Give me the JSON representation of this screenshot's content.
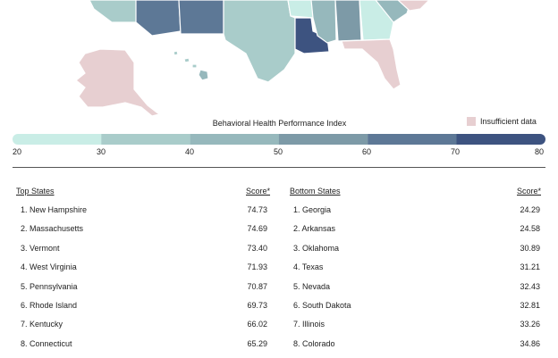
{
  "colors": {
    "c20_30": "#c9ede6",
    "c30_40": "#a9ccca",
    "c40_50": "#96b8bc",
    "c50_60": "#7d9aa7",
    "c60_70": "#5d7896",
    "c70_80": "#3d5380",
    "insufficient": "#e7cfd1",
    "outline": "#ffffff"
  },
  "legend": {
    "title": "Behavioral Health Performance Index",
    "insufficient_label": "Insufficient data",
    "ticks": [
      "20",
      "30",
      "40",
      "50",
      "60",
      "70",
      "80"
    ]
  },
  "top": {
    "header": "Top States",
    "score_header": "Score*",
    "items": [
      {
        "label": "1. New Hampshire",
        "score": "74.73"
      },
      {
        "label": "2. Massachusetts",
        "score": "74.69"
      },
      {
        "label": "3. Vermont",
        "score": "73.40"
      },
      {
        "label": "4. West Virginia",
        "score": "71.93"
      },
      {
        "label": "5. Pennsylvania",
        "score": "70.87"
      },
      {
        "label": "6. Rhode Island",
        "score": "69.73"
      },
      {
        "label": "7. Kentucky",
        "score": "66.02"
      },
      {
        "label": "8. Connecticut",
        "score": "65.29"
      }
    ]
  },
  "bottom": {
    "header": "Bottom States",
    "score_header": "Score*",
    "items": [
      {
        "label": "1. Georgia",
        "score": "24.29"
      },
      {
        "label": "2. Arkansas",
        "score": "24.58"
      },
      {
        "label": "3. Oklahoma",
        "score": "30.89"
      },
      {
        "label": "4. Texas",
        "score": "31.21"
      },
      {
        "label": "5. Nevada",
        "score": "32.43"
      },
      {
        "label": "6. South Dakota",
        "score": "32.81"
      },
      {
        "label": "7. Illinois",
        "score": "33.26"
      },
      {
        "label": "8. Colorado",
        "score": "34.86"
      }
    ]
  }
}
